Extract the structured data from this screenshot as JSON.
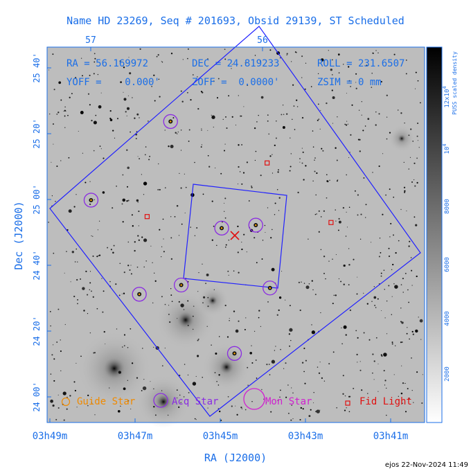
{
  "title": "Name HD 23269, Seq # 201693, Obsid 29139, ST Scheduled",
  "header": {
    "ra": "RA = 56.169972",
    "dec": "DEC = 24.819233",
    "roll": "ROLL = 231.6507",
    "yoff": "YOFF =    0.000'",
    "zoff": "ZOFF =  0.0000'",
    "zsim": "ZSIM = 0 mm"
  },
  "footer": "ejos 22-Nov-2024 11:49",
  "colors": {
    "annotation": "#1a6ee8",
    "frame": "#1f1fff",
    "acq": "#8a2be2",
    "mon": "#d020d0",
    "guide": "#f08a00",
    "fid": "#e01010"
  },
  "chart_data": {
    "type": "scatter",
    "xlabel": "RA (J2000)",
    "ylabel": "Dec (J2000)",
    "x_ticks_bottom": [
      "03h49m",
      "03h47m",
      "03h45m",
      "03h43m",
      "03h41m"
    ],
    "x_ticks_top": [
      "57",
      "56"
    ],
    "y_ticks": [
      "25 40'",
      "25 20'",
      "25 00'",
      "24 40'",
      "24 20'",
      "24 00'"
    ],
    "colorbar": {
      "label": "PUSS scaled density",
      "ticks": [
        "12x10^4",
        "10^4",
        "8000",
        "6000",
        "4000",
        "2000"
      ]
    },
    "legend": [
      {
        "label": "Guide Star",
        "marker": "guide"
      },
      {
        "label": "Acq Star",
        "marker": "acq"
      },
      {
        "label": "Mon Star",
        "marker": "mon"
      },
      {
        "label": "Fid Light",
        "marker": "fid"
      }
    ],
    "acq_stars": [
      {
        "ra": "03h48m02s",
        "dec": "24 59.8'"
      },
      {
        "ra": "03h46m10s",
        "dec": "25 23.7'"
      },
      {
        "ra": "03h44m58s",
        "dec": "24 51.3'"
      },
      {
        "ra": "03h44m10s",
        "dec": "24 52.2'"
      },
      {
        "ra": "03h46m54s",
        "dec": "24 31.2'"
      },
      {
        "ra": "03h45m55s",
        "dec": "24 34.0'"
      },
      {
        "ra": "03h43m50s",
        "dec": "24 33.1'"
      },
      {
        "ra": "03h44m40s",
        "dec": "24 13.2'"
      }
    ],
    "fid_lights": [
      {
        "ra": "03h43m54s",
        "dec": "25 11.1'"
      },
      {
        "ra": "03h46m43s",
        "dec": "24 54.8'"
      },
      {
        "ra": "03h42m24s",
        "dec": "24 53.0'"
      }
    ],
    "target": {
      "ra": 56.169972,
      "dec": 24.819233
    }
  }
}
